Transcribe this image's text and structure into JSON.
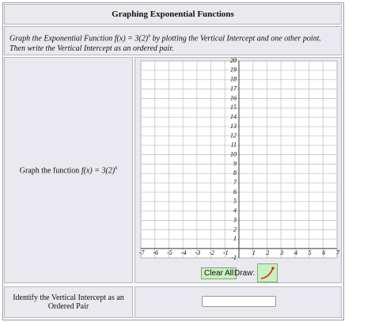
{
  "header": {
    "title": "Graphing Exponential Functions"
  },
  "instructions": {
    "before": "Graph the Exponential Function",
    "function": "f(x) = 3(2)",
    "exponent": "x",
    "after": "by plotting the Vertical Intercept and one other point. Then write the Vertical Intercept as an ordered pair."
  },
  "graph_row": {
    "prompt": "Graph the function",
    "function": "f(x) = 3(2)",
    "exponent": "x"
  },
  "graph": {
    "xlim": [
      -7,
      7
    ],
    "ylim": [
      -1,
      20
    ],
    "xticks": [
      -7,
      -6,
      -5,
      -4,
      -3,
      -2,
      -1,
      1,
      2,
      3,
      4,
      5,
      6,
      7
    ],
    "yticks": [
      -1,
      1,
      2,
      3,
      4,
      5,
      6,
      7,
      8,
      9,
      10,
      11,
      12,
      13,
      14,
      15,
      16,
      17,
      18,
      19,
      20
    ]
  },
  "controls": {
    "clear": "Clear All",
    "draw": "Draw:"
  },
  "answer_row": {
    "prompt": "Identify the Vertical Intercept as an Ordered Pair"
  }
}
